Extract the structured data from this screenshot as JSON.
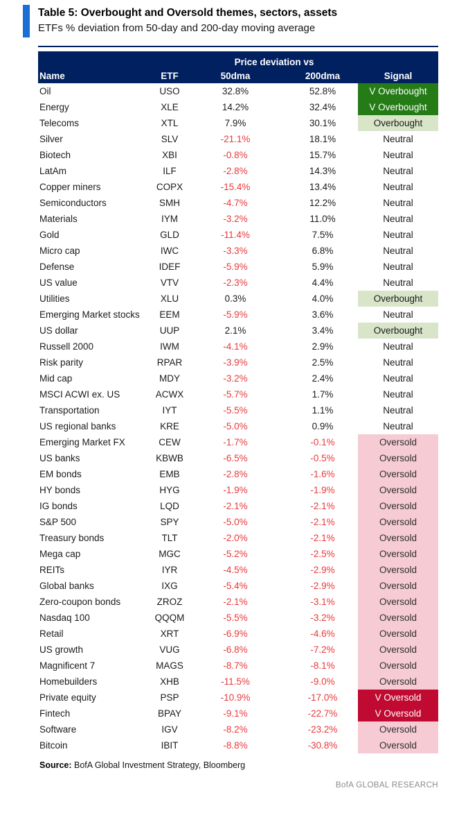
{
  "colors": {
    "accent_bar_blue": "#1b6ed6",
    "header_navy": "#002060",
    "negative_red": "#e8393d",
    "very_overbought_bg": "#257c17",
    "overbought_bg": "#d9e5c9",
    "oversold_bg": "#f6cbd4",
    "very_oversold_bg": "#c00a31",
    "brand_gray": "#8a8a8a"
  },
  "header": {
    "title": "Table 5: Overbought and Oversold themes, sectors, assets",
    "subtitle": "ETFs % deviation from 50-day and 200-day moving average"
  },
  "table": {
    "group_header": "Price deviation vs",
    "columns": [
      "Name",
      "ETF",
      "50dma",
      "200dma",
      "Signal"
    ],
    "rows": [
      {
        "name": "Oil",
        "etf": "USO",
        "dma50": "32.8%",
        "dma200": "52.8%",
        "signal": "V Overbought",
        "signal_type": "very-overbought"
      },
      {
        "name": "Energy",
        "etf": "XLE",
        "dma50": "14.2%",
        "dma200": "32.4%",
        "signal": "V Overbought",
        "signal_type": "very-overbought"
      },
      {
        "name": "Telecoms",
        "etf": "XTL",
        "dma50": "7.9%",
        "dma200": "30.1%",
        "signal": "Overbought",
        "signal_type": "overbought"
      },
      {
        "name": "Silver",
        "etf": "SLV",
        "dma50": "-21.1%",
        "dma200": "18.1%",
        "signal": "Neutral",
        "signal_type": "neutral"
      },
      {
        "name": "Biotech",
        "etf": "XBI",
        "dma50": "-0.8%",
        "dma200": "15.7%",
        "signal": "Neutral",
        "signal_type": "neutral"
      },
      {
        "name": "LatAm",
        "etf": "ILF",
        "dma50": "-2.8%",
        "dma200": "14.3%",
        "signal": "Neutral",
        "signal_type": "neutral"
      },
      {
        "name": "Copper miners",
        "etf": "COPX",
        "dma50": "-15.4%",
        "dma200": "13.4%",
        "signal": "Neutral",
        "signal_type": "neutral"
      },
      {
        "name": "Semiconductors",
        "etf": "SMH",
        "dma50": "-4.7%",
        "dma200": "12.2%",
        "signal": "Neutral",
        "signal_type": "neutral"
      },
      {
        "name": "Materials",
        "etf": "IYM",
        "dma50": "-3.2%",
        "dma200": "11.0%",
        "signal": "Neutral",
        "signal_type": "neutral"
      },
      {
        "name": "Gold",
        "etf": "GLD",
        "dma50": "-11.4%",
        "dma200": "7.5%",
        "signal": "Neutral",
        "signal_type": "neutral"
      },
      {
        "name": "Micro cap",
        "etf": "IWC",
        "dma50": "-3.3%",
        "dma200": "6.8%",
        "signal": "Neutral",
        "signal_type": "neutral"
      },
      {
        "name": "Defense",
        "etf": "IDEF",
        "dma50": "-5.9%",
        "dma200": "5.9%",
        "signal": "Neutral",
        "signal_type": "neutral"
      },
      {
        "name": "US value",
        "etf": "VTV",
        "dma50": "-2.3%",
        "dma200": "4.4%",
        "signal": "Neutral",
        "signal_type": "neutral"
      },
      {
        "name": "Utilities",
        "etf": "XLU",
        "dma50": "0.3%",
        "dma200": "4.0%",
        "signal": "Overbought",
        "signal_type": "overbought"
      },
      {
        "name": "Emerging Market stocks",
        "etf": "EEM",
        "dma50": "-5.9%",
        "dma200": "3.6%",
        "signal": "Neutral",
        "signal_type": "neutral"
      },
      {
        "name": "US dollar",
        "etf": "UUP",
        "dma50": "2.1%",
        "dma200": "3.4%",
        "signal": "Overbought",
        "signal_type": "overbought"
      },
      {
        "name": "Russell 2000",
        "etf": "IWM",
        "dma50": "-4.1%",
        "dma200": "2.9%",
        "signal": "Neutral",
        "signal_type": "neutral"
      },
      {
        "name": "Risk parity",
        "etf": "RPAR",
        "dma50": "-3.9%",
        "dma200": "2.5%",
        "signal": "Neutral",
        "signal_type": "neutral"
      },
      {
        "name": "Mid cap",
        "etf": "MDY",
        "dma50": "-3.2%",
        "dma200": "2.4%",
        "signal": "Neutral",
        "signal_type": "neutral"
      },
      {
        "name": "MSCI ACWI ex. US",
        "etf": "ACWX",
        "dma50": "-5.7%",
        "dma200": "1.7%",
        "signal": "Neutral",
        "signal_type": "neutral"
      },
      {
        "name": "Transportation",
        "etf": "IYT",
        "dma50": "-5.5%",
        "dma200": "1.1%",
        "signal": "Neutral",
        "signal_type": "neutral"
      },
      {
        "name": "US regional banks",
        "etf": "KRE",
        "dma50": "-5.0%",
        "dma200": "0.9%",
        "signal": "Neutral",
        "signal_type": "neutral"
      },
      {
        "name": "Emerging Market FX",
        "etf": "CEW",
        "dma50": "-1.7%",
        "dma200": "-0.1%",
        "signal": "Oversold",
        "signal_type": "oversold"
      },
      {
        "name": "US banks",
        "etf": "KBWB",
        "dma50": "-6.5%",
        "dma200": "-0.5%",
        "signal": "Oversold",
        "signal_type": "oversold"
      },
      {
        "name": "EM bonds",
        "etf": "EMB",
        "dma50": "-2.8%",
        "dma200": "-1.6%",
        "signal": "Oversold",
        "signal_type": "oversold"
      },
      {
        "name": "HY bonds",
        "etf": "HYG",
        "dma50": "-1.9%",
        "dma200": "-1.9%",
        "signal": "Oversold",
        "signal_type": "oversold"
      },
      {
        "name": "IG bonds",
        "etf": "LQD",
        "dma50": "-2.1%",
        "dma200": "-2.1%",
        "signal": "Oversold",
        "signal_type": "oversold"
      },
      {
        "name": "S&P 500",
        "etf": "SPY",
        "dma50": "-5.0%",
        "dma200": "-2.1%",
        "signal": "Oversold",
        "signal_type": "oversold"
      },
      {
        "name": "Treasury bonds",
        "etf": "TLT",
        "dma50": "-2.0%",
        "dma200": "-2.1%",
        "signal": "Oversold",
        "signal_type": "oversold"
      },
      {
        "name": "Mega cap",
        "etf": "MGC",
        "dma50": "-5.2%",
        "dma200": "-2.5%",
        "signal": "Oversold",
        "signal_type": "oversold"
      },
      {
        "name": "REITs",
        "etf": "IYR",
        "dma50": "-4.5%",
        "dma200": "-2.9%",
        "signal": "Oversold",
        "signal_type": "oversold"
      },
      {
        "name": "Global banks",
        "etf": "IXG",
        "dma50": "-5.4%",
        "dma200": "-2.9%",
        "signal": "Oversold",
        "signal_type": "oversold"
      },
      {
        "name": "Zero-coupon bonds",
        "etf": "ZROZ",
        "dma50": "-2.1%",
        "dma200": "-3.1%",
        "signal": "Oversold",
        "signal_type": "oversold"
      },
      {
        "name": "Nasdaq 100",
        "etf": "QQQM",
        "dma50": "-5.5%",
        "dma200": "-3.2%",
        "signal": "Oversold",
        "signal_type": "oversold"
      },
      {
        "name": "Retail",
        "etf": "XRT",
        "dma50": "-6.9%",
        "dma200": "-4.6%",
        "signal": "Oversold",
        "signal_type": "oversold"
      },
      {
        "name": "US growth",
        "etf": "VUG",
        "dma50": "-6.8%",
        "dma200": "-7.2%",
        "signal": "Oversold",
        "signal_type": "oversold"
      },
      {
        "name": "Magnificent 7",
        "etf": "MAGS",
        "dma50": "-8.7%",
        "dma200": "-8.1%",
        "signal": "Oversold",
        "signal_type": "oversold"
      },
      {
        "name": "Homebuilders",
        "etf": "XHB",
        "dma50": "-11.5%",
        "dma200": "-9.0%",
        "signal": "Oversold",
        "signal_type": "oversold"
      },
      {
        "name": "Private equity",
        "etf": "PSP",
        "dma50": "-10.9%",
        "dma200": "-17.0%",
        "signal": "V Oversold",
        "signal_type": "very-oversold"
      },
      {
        "name": "Fintech",
        "etf": "BPAY",
        "dma50": "-9.1%",
        "dma200": "-22.7%",
        "signal": "V Oversold",
        "signal_type": "very-oversold"
      },
      {
        "name": "Software",
        "etf": "IGV",
        "dma50": "-8.2%",
        "dma200": "-23.2%",
        "signal": "Oversold",
        "signal_type": "oversold"
      },
      {
        "name": "Bitcoin",
        "etf": "IBIT",
        "dma50": "-8.8%",
        "dma200": "-30.8%",
        "signal": "Oversold",
        "signal_type": "oversold"
      }
    ]
  },
  "footer": {
    "source_label": "Source:",
    "source_text": " BofA Global Investment Strategy, Bloomberg",
    "brand": "BofA GLOBAL RESEARCH"
  }
}
